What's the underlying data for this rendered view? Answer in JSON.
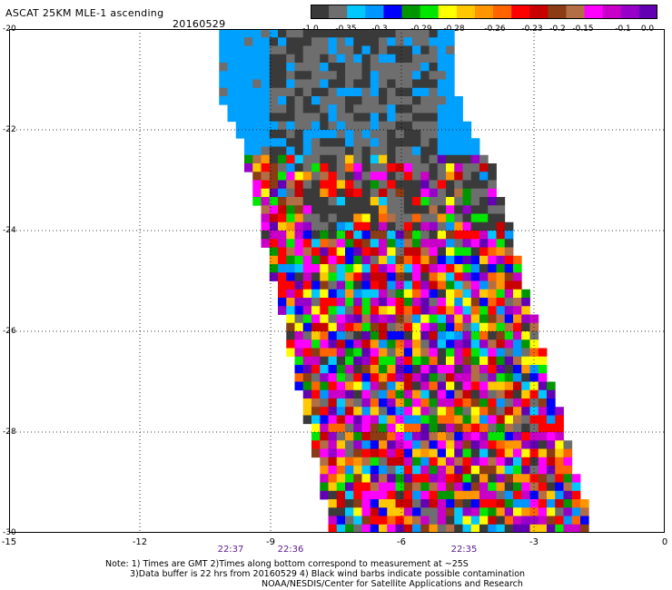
{
  "header": {
    "title": "ASCAT 25KM MLE-1 ascending",
    "date": "20160529"
  },
  "colorbar": {
    "colors": [
      "#3a3a3a",
      "#6e6e6e",
      "#00c8ff",
      "#0096ff",
      "#0000ff",
      "#009600",
      "#00e600",
      "#ffff00",
      "#ffc800",
      "#ff9600",
      "#ff6400",
      "#ff0000",
      "#c80000",
      "#8c3c14",
      "#b46e46",
      "#ff00ff",
      "#c800c8",
      "#9600c8",
      "#6400b4"
    ],
    "labels": [
      "-1.0",
      "-0.35",
      "-0.3",
      "-0.29",
      "-0.28",
      "-0.26",
      "-0.23",
      "-0.2",
      "-0.15",
      "-0.1",
      "0.0"
    ]
  },
  "axes": {
    "y_ticks": [
      "-20",
      "-22",
      "-24",
      "-26",
      "-28",
      "-30"
    ],
    "x_ticks": [
      "-15",
      "-12",
      "-9",
      "-6",
      "-3",
      "0"
    ],
    "lat_range": [
      -30,
      -20
    ],
    "lon_range": [
      -15,
      0
    ]
  },
  "times": [
    "22:37",
    "22:36",
    "22:35"
  ],
  "notes": {
    "line1": "Note: 1) Times are GMT 2)Times along bottom correspond to measurement at ~25S",
    "line2": "3)Data buffer is 22 hrs from 20160529 4) Black wind barbs indicate possible contamination",
    "line3": "NOAA/NESDIS/Center for Satellite Applications and Research"
  }
}
